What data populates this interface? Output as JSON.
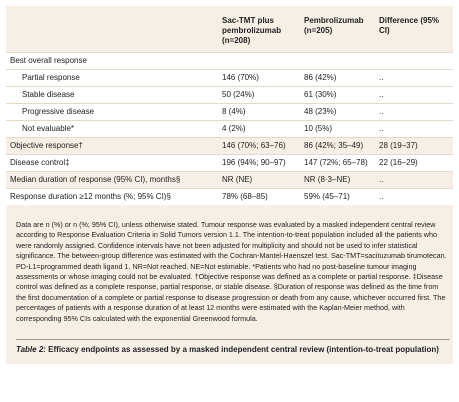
{
  "table": {
    "header": [
      "Sac-TMT plus pembrolizumab (n=208)",
      "Pembrolizumab (n=205)",
      "Difference (95% CI)"
    ],
    "group": {
      "label": "Best overall response",
      "rows": [
        {
          "label": "Partial response",
          "cells": [
            "146 (70%)",
            "86 (42%)",
            ".."
          ]
        },
        {
          "label": "Stable disease",
          "cells": [
            "50 (24%)",
            "61 (30%)",
            ".."
          ]
        },
        {
          "label": "Progressive disease",
          "cells": [
            "8 (4%)",
            "48 (23%)",
            ".."
          ]
        },
        {
          "label": "Not evaluable*",
          "cells": [
            "4 (2%)",
            "10 (5%)",
            ".."
          ]
        }
      ]
    },
    "rows": [
      {
        "label": "Objective response†",
        "cells": [
          "146 (70%; 63–76)",
          "86 (42%; 35–49)",
          "28 (19–37)"
        ]
      },
      {
        "label": "Disease control‡",
        "cells": [
          "196 (94%; 90–97)",
          "147 (72%; 65–78)",
          "22 (16–29)"
        ]
      },
      {
        "label": "Median duration of response (95% CI), months§",
        "cells": [
          "NR (NE)",
          "NR (8·3–NE)",
          ".."
        ]
      },
      {
        "label": "Response duration ≥12 months (%; 95% CI)§",
        "cells": [
          "78% (68–85)",
          "59% (45–71)",
          ".."
        ]
      }
    ]
  },
  "footnote": "Data are n (%) or n (%; 95% CI), unless otherwise stated. Tumour response was evaluated by a masked independent central review according to Response Evaluation Criteria in Solid Tumors version 1.1. The intention-to-treat population included all the patients who were randomly assigned. Confidence intervals have not been adjusted for multiplicity and should not be used to infer statistical significance. The between-group difference was estimated with the Cochran-Mantel-Haenszel test. Sac-TMT=sacituzumab tirumotecan. PD-L1=programmed death ligand 1. NR=Not reached. NE=Not estimable. *Patients who had no post-baseline tumour imaging assessments or whose imaging could not be evaluated. †Objective response was defined as a complete or partial response. ‡Disease control was defined as a complete response, partial response, or stable disease. §Duration of response was defined as the time from the first documentation of a complete or partial response to disease progression or death from any cause, whichever occurred first. The percentages of patients with a response duration of at least 12 months were estimated with the Kaplan-Meier method, with corresponding 95% CIs calculated with the exponential Greenwood formula.",
  "caption": {
    "label": "Table 2:",
    "text": "Efficacy endpoints as assessed by a masked independent central review (intention-to-treat population)"
  }
}
